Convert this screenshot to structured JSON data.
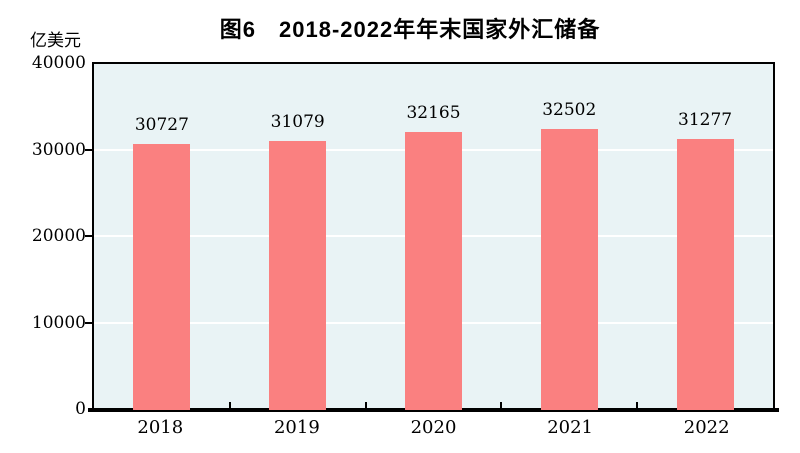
{
  "figure": {
    "title": "图6　2018-2022年年末国家外汇储备",
    "unit_label": "亿美元"
  },
  "chart_data": {
    "type": "bar",
    "title": "图6　2018-2022年年末国家外汇储备",
    "unit_label": "亿美元",
    "categories": [
      "2018",
      "2019",
      "2020",
      "2021",
      "2022"
    ],
    "values": [
      30727,
      31079,
      32165,
      32502,
      31277
    ],
    "data_labels": [
      "30727",
      "31079",
      "32165",
      "32502",
      "31277"
    ],
    "xlabel": "",
    "ylabel": "亿美元",
    "ylim": [
      0,
      40000
    ],
    "yticks": [
      0,
      10000,
      20000,
      30000,
      40000
    ],
    "grid": true,
    "legend_position": "none",
    "colors": {
      "bar_fill": "#FA8080",
      "plot_background": "#E9F3F5",
      "gridline": "#FFFFFF",
      "axis": "#000000",
      "text": "#000000"
    }
  }
}
